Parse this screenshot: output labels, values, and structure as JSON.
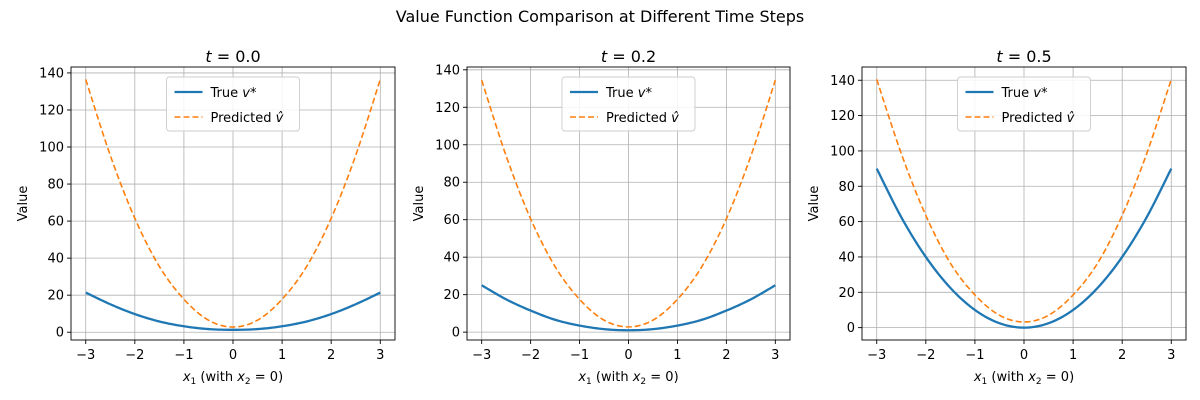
{
  "figure": {
    "suptitle": "Value Function Comparison at Different Time Steps"
  },
  "chart_data": [
    {
      "type": "line",
      "title": "t = 0.0",
      "xlabel": "x1 (with x2 = 0)",
      "ylabel": "Value",
      "xlim": [
        -3.3,
        3.3
      ],
      "ylim": [
        -4.2,
        143.2
      ],
      "xticks": [
        -3,
        -2,
        -1,
        0,
        1,
        2,
        3
      ],
      "yticks": [
        0,
        20,
        40,
        60,
        80,
        100,
        120,
        140
      ],
      "grid": true,
      "legend_position": "upper center",
      "series": [
        {
          "name": "True v*",
          "style": "solid",
          "color": "#1f77b4",
          "x": [
            -3,
            -2.5,
            -2,
            -1.5,
            -1,
            -0.5,
            0,
            0.5,
            1,
            1.5,
            2,
            2.5,
            3
          ],
          "y": [
            21.4,
            15.1,
            9.8,
            5.8,
            3.2,
            1.7,
            1.3,
            1.7,
            3.2,
            5.8,
            9.8,
            15.1,
            21.4
          ]
        },
        {
          "name": "Predicted v̂",
          "style": "dashed",
          "color": "#ff7f0e",
          "x": [
            -3,
            -2.5,
            -2,
            -1.5,
            -1,
            -0.5,
            0,
            0.5,
            1,
            1.5,
            2,
            2.5,
            3
          ],
          "y": [
            136.5,
            95.5,
            61.5,
            35.5,
            17.8,
            6.5,
            2.8,
            6.5,
            17.8,
            35.5,
            61.5,
            95.5,
            136.5
          ]
        }
      ]
    },
    {
      "type": "line",
      "title": "t = 0.2",
      "xlabel": "x1 (with x2 = 0)",
      "ylabel": "Value",
      "xlim": [
        -3.3,
        3.3
      ],
      "ylim": [
        -4.2,
        141.5
      ],
      "xticks": [
        -3,
        -2,
        -1,
        0,
        1,
        2,
        3
      ],
      "yticks": [
        0,
        20,
        40,
        60,
        80,
        100,
        120,
        140
      ],
      "grid": true,
      "legend_position": "upper center",
      "series": [
        {
          "name": "True v*",
          "style": "solid",
          "color": "#1f77b4",
          "x": [
            -3,
            -2.5,
            -2,
            -1.5,
            -1,
            -0.5,
            0,
            0.5,
            1,
            1.5,
            2,
            2.5,
            3
          ],
          "y": [
            25.0,
            17.5,
            11.5,
            6.6,
            3.5,
            1.6,
            1.0,
            1.6,
            3.5,
            6.6,
            11.5,
            17.5,
            25.0
          ]
        },
        {
          "name": "Predicted v̂",
          "style": "dashed",
          "color": "#ff7f0e",
          "x": [
            -3,
            -2.5,
            -2,
            -1.5,
            -1,
            -0.5,
            0,
            0.5,
            1,
            1.5,
            2,
            2.5,
            3
          ],
          "y": [
            134.5,
            94.0,
            60.5,
            35.0,
            17.5,
            6.4,
            2.8,
            6.4,
            17.5,
            35.0,
            60.5,
            94.0,
            134.5
          ]
        }
      ]
    },
    {
      "type": "line",
      "title": "t = 0.5",
      "xlabel": "x1 (with x2 = 0)",
      "ylabel": "Value",
      "xlim": [
        -3.3,
        3.3
      ],
      "ylim": [
        -7.0,
        147.5
      ],
      "xticks": [
        -3,
        -2,
        -1,
        0,
        1,
        2,
        3
      ],
      "yticks": [
        0,
        20,
        40,
        60,
        80,
        100,
        120,
        140
      ],
      "grid": true,
      "legend_position": "upper center",
      "series": [
        {
          "name": "True v*",
          "style": "solid",
          "color": "#1f77b4",
          "x": [
            -3,
            -2.5,
            -2,
            -1.5,
            -1,
            -0.5,
            0,
            0.5,
            1,
            1.5,
            2,
            2.5,
            3
          ],
          "y": [
            90.0,
            62.5,
            40.0,
            22.5,
            10.0,
            2.5,
            0.0,
            2.5,
            10.0,
            22.5,
            40.0,
            62.5,
            90.0
          ]
        },
        {
          "name": "Predicted v̂",
          "style": "dashed",
          "color": "#ff7f0e",
          "x": [
            -3,
            -2.5,
            -2,
            -1.5,
            -1,
            -0.5,
            0,
            0.5,
            1,
            1.5,
            2,
            2.5,
            3
          ],
          "y": [
            140.5,
            98.5,
            63.5,
            36.5,
            18.5,
            7.0,
            3.2,
            7.0,
            18.5,
            36.5,
            63.5,
            98.5,
            140.5
          ]
        }
      ]
    }
  ]
}
